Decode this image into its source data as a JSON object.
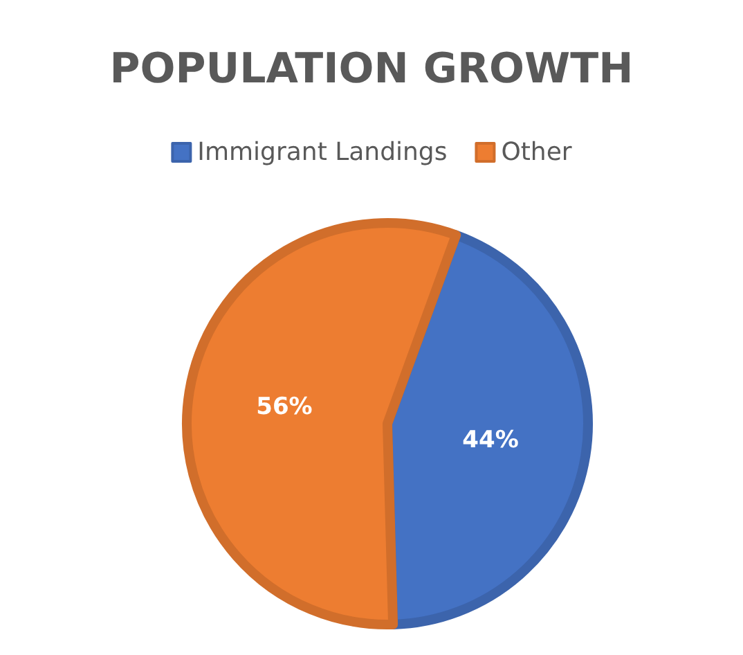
{
  "chart_data": {
    "type": "pie",
    "title": "POPULATION GROWTH",
    "categories": [
      "Immigrant Landings",
      "Other"
    ],
    "values": [
      44,
      56
    ],
    "colors": [
      "#4472c4",
      "#ed7d31"
    ],
    "value_labels": [
      "44%",
      "56%"
    ],
    "legend": "top"
  }
}
